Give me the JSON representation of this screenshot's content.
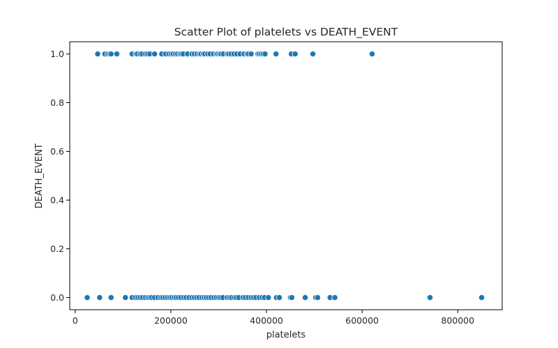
{
  "chart_data": {
    "type": "scatter",
    "title": "Scatter Plot of platelets vs DEATH_EVENT",
    "xlabel": "platelets",
    "ylabel": "DEATH_EVENT",
    "xlim": [
      0,
      900000
    ],
    "ylim": [
      -0.05,
      1.05
    ],
    "xticks": [
      0,
      200000,
      400000,
      600000,
      800000
    ],
    "xtick_labels": [
      "0",
      "200000",
      "400000",
      "600000",
      "800000"
    ],
    "yticks": [
      0.0,
      0.2,
      0.4,
      0.6,
      0.8,
      1.0
    ],
    "ytick_labels": [
      "0.0",
      "0.2",
      "0.4",
      "0.6",
      "0.8",
      "1.0"
    ],
    "grid": false,
    "marker_color": "#1f77b4",
    "marker_edge_color": "#ffffff",
    "series": [
      {
        "x": [
          47000,
          62000,
          68000,
          72000,
          75000,
          87000,
          119000,
          127000,
          130000,
          136000,
          140000,
          147000,
          151000,
          156000,
          166000,
          181000,
          189000,
          196000,
          201000,
          205000,
          210000,
          214000,
          219000,
          222000,
          226000,
          235000,
          244000,
          249000,
          255000,
          260000,
          263000,
          268000,
          271000,
          277000,
          282000,
          289000,
          295000,
          298000,
          302000,
          305000,
          310000,
          318000,
          321000,
          326000,
          332000,
          338000,
          345000,
          353000,
          359000,
          362000,
          368000,
          382000,
          385000,
          389000,
          393000,
          397000,
          420000,
          452000,
          460000,
          497000,
          621000
        ],
        "y": [
          1,
          1,
          1,
          1,
          1,
          1,
          1,
          1,
          1,
          1,
          1,
          1,
          1,
          1,
          1,
          1,
          1,
          1,
          1,
          1,
          1,
          1,
          1,
          1,
          1,
          1,
          1,
          1,
          1,
          1,
          1,
          1,
          1,
          1,
          1,
          1,
          1,
          1,
          1,
          1,
          1,
          1,
          1,
          1,
          1,
          1,
          1,
          1,
          1,
          1,
          1,
          1,
          1,
          1,
          1,
          1,
          1,
          1,
          1,
          1,
          1
        ]
      },
      {
        "x": [
          25100,
          51000,
          75000,
          105000,
          119000,
          126000,
          131000,
          136000,
          141000,
          147000,
          152000,
          156000,
          160000,
          166000,
          173000,
          179000,
          183000,
          188000,
          193000,
          198000,
          202000,
          207000,
          211000,
          216000,
          221000,
          227000,
          232000,
          238000,
          244000,
          249000,
          254000,
          259000,
          265000,
          270000,
          274000,
          279000,
          284000,
          290000,
          295000,
          300000,
          304000,
          309000,
          318000,
          323000,
          327000,
          333000,
          337000,
          342000,
          351000,
          356000,
          362000,
          368000,
          373000,
          378000,
          385000,
          391000,
          396000,
          404000,
          421000,
          427000,
          450000,
          453000,
          481000,
          503000,
          507000,
          533000,
          543000,
          742000,
          850000
        ],
        "y": [
          0,
          0,
          0,
          0,
          0,
          0,
          0,
          0,
          0,
          0,
          0,
          0,
          0,
          0,
          0,
          0,
          0,
          0,
          0,
          0,
          0,
          0,
          0,
          0,
          0,
          0,
          0,
          0,
          0,
          0,
          0,
          0,
          0,
          0,
          0,
          0,
          0,
          0,
          0,
          0,
          0,
          0,
          0,
          0,
          0,
          0,
          0,
          0,
          0,
          0,
          0,
          0,
          0,
          0,
          0,
          0,
          0,
          0,
          0,
          0,
          0,
          0,
          0,
          0,
          0,
          0,
          0,
          0,
          0
        ]
      }
    ]
  }
}
